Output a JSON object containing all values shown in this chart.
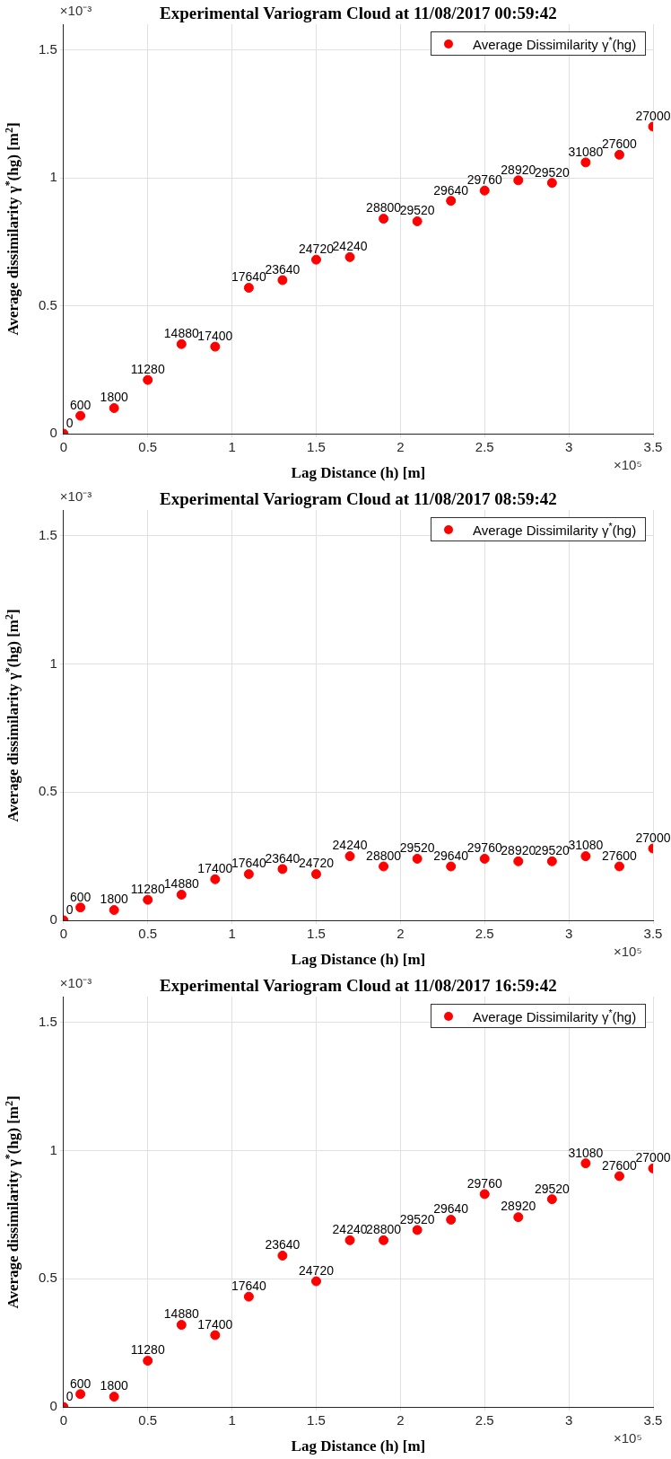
{
  "chart_data": [
    {
      "type": "scatter",
      "title": "Experimental Variogram Cloud at 11/08/2017 00:59:42",
      "xlabel": "Lag Distance (h) [m]",
      "ylabel": "Average dissimilarity γ$^{*}$(hg) [m$^{2}$]",
      "x": [
        0,
        0.1,
        0.3,
        0.5,
        0.7,
        0.9,
        1.1,
        1.3,
        1.5,
        1.7,
        1.9,
        2.1,
        2.3,
        2.5,
        2.7,
        2.9,
        3.1,
        3.3,
        3.5
      ],
      "series": [
        {
          "name": "Average Dissimilarity γ$^{*}$(hg)",
          "color": "#ff0000",
          "values": [
            0,
            0.07,
            0.1,
            0.21,
            0.35,
            0.34,
            0.57,
            0.6,
            0.68,
            0.69,
            0.84,
            0.83,
            0.91,
            0.95,
            0.99,
            0.98,
            1.06,
            1.09,
            1.2
          ]
        }
      ],
      "xlim": [
        0,
        3.5
      ],
      "xticks": [
        0,
        0.5,
        1,
        1.5,
        2,
        2.5,
        3,
        3.5
      ],
      "ylim": [
        0,
        1.6
      ],
      "yticks": [
        0,
        0.5,
        1,
        1.5
      ],
      "grid": true,
      "legend": "top right",
      "marker": "circle",
      "annotations": [
        "×10⁻³",
        "×10⁵",
        {
          "text": "0",
          "x": 0,
          "y": 0
        },
        {
          "text": "600",
          "x": 0.1,
          "y": 0.07
        },
        {
          "text": "1800",
          "x": 0.3,
          "y": 0.1
        },
        {
          "text": "11280",
          "x": 0.5,
          "y": 0.21
        },
        {
          "text": "14880",
          "x": 0.7,
          "y": 0.35
        },
        {
          "text": "17400",
          "x": 0.9,
          "y": 0.34
        },
        {
          "text": "17640",
          "x": 1.1,
          "y": 0.57
        },
        {
          "text": "23640",
          "x": 1.3,
          "y": 0.6
        },
        {
          "text": "24720",
          "x": 1.5,
          "y": 0.68
        },
        {
          "text": "24240",
          "x": 1.7,
          "y": 0.69
        },
        {
          "text": "28800",
          "x": 1.9,
          "y": 0.84
        },
        {
          "text": "29520",
          "x": 2.1,
          "y": 0.83
        },
        {
          "text": "29640",
          "x": 2.3,
          "y": 0.91
        },
        {
          "text": "29760",
          "x": 2.5,
          "y": 0.95
        },
        {
          "text": "28920",
          "x": 2.7,
          "y": 0.99
        },
        {
          "text": "29520",
          "x": 2.9,
          "y": 0.98
        },
        {
          "text": "31080",
          "x": 3.1,
          "y": 1.06
        },
        {
          "text": "27600",
          "x": 3.3,
          "y": 1.09
        },
        {
          "text": "27000",
          "x": 3.5,
          "y": 1.2
        }
      ]
    },
    {
      "type": "scatter",
      "title": "Experimental Variogram Cloud at 11/08/2017 08:59:42",
      "xlabel": "Lag Distance (h) [m]",
      "ylabel": "Average dissimilarity γ$^{*}$(hg) [m$^{2}$]",
      "x": [
        0,
        0.1,
        0.3,
        0.5,
        0.7,
        0.9,
        1.1,
        1.3,
        1.5,
        1.7,
        1.9,
        2.1,
        2.3,
        2.5,
        2.7,
        2.9,
        3.1,
        3.3,
        3.5
      ],
      "series": [
        {
          "name": "Average Dissimilarity γ$^{*}$(hg)",
          "color": "#ff0000",
          "values": [
            0,
            0.05,
            0.04,
            0.08,
            0.1,
            0.16,
            0.18,
            0.2,
            0.18,
            0.25,
            0.21,
            0.24,
            0.21,
            0.24,
            0.23,
            0.23,
            0.25,
            0.21,
            0.28
          ]
        }
      ],
      "xlim": [
        0,
        3.5
      ],
      "xticks": [
        0,
        0.5,
        1,
        1.5,
        2,
        2.5,
        3,
        3.5
      ],
      "ylim": [
        0,
        1.6
      ],
      "yticks": [
        0,
        0.5,
        1,
        1.5
      ],
      "grid": true,
      "legend": "top right",
      "marker": "circle",
      "annotations": [
        "×10⁻³",
        "×10⁵",
        {
          "text": "0",
          "x": 0,
          "y": 0
        },
        {
          "text": "600",
          "x": 0.1,
          "y": 0.05
        },
        {
          "text": "1800",
          "x": 0.3,
          "y": 0.04
        },
        {
          "text": "11280",
          "x": 0.5,
          "y": 0.08
        },
        {
          "text": "14880",
          "x": 0.7,
          "y": 0.1
        },
        {
          "text": "17400",
          "x": 0.9,
          "y": 0.16
        },
        {
          "text": "17640",
          "x": 1.1,
          "y": 0.18
        },
        {
          "text": "23640",
          "x": 1.3,
          "y": 0.2
        },
        {
          "text": "24720",
          "x": 1.5,
          "y": 0.18
        },
        {
          "text": "24240",
          "x": 1.7,
          "y": 0.25
        },
        {
          "text": "28800",
          "x": 1.9,
          "y": 0.21
        },
        {
          "text": "29520",
          "x": 2.1,
          "y": 0.24
        },
        {
          "text": "29640",
          "x": 2.3,
          "y": 0.21
        },
        {
          "text": "29760",
          "x": 2.5,
          "y": 0.24
        },
        {
          "text": "28920",
          "x": 2.7,
          "y": 0.23
        },
        {
          "text": "29520",
          "x": 2.9,
          "y": 0.23
        },
        {
          "text": "31080",
          "x": 3.1,
          "y": 0.25
        },
        {
          "text": "27600",
          "x": 3.3,
          "y": 0.21
        },
        {
          "text": "27000",
          "x": 3.5,
          "y": 0.28
        }
      ]
    },
    {
      "type": "scatter",
      "title": "Experimental Variogram Cloud at 11/08/2017 16:59:42",
      "xlabel": "Lag Distance (h) [m]",
      "ylabel": "Average dissimilarity γ$^{*}$(hg) [m$^{2}$]",
      "x": [
        0,
        0.1,
        0.3,
        0.5,
        0.7,
        0.9,
        1.1,
        1.3,
        1.5,
        1.7,
        1.9,
        2.1,
        2.3,
        2.5,
        2.7,
        2.9,
        3.1,
        3.3,
        3.5
      ],
      "series": [
        {
          "name": "Average Dissimilarity γ$^{*}$(hg)",
          "color": "#ff0000",
          "values": [
            0,
            0.05,
            0.04,
            0.18,
            0.32,
            0.28,
            0.43,
            0.59,
            0.49,
            0.65,
            0.65,
            0.69,
            0.73,
            0.83,
            0.74,
            0.81,
            0.95,
            0.9,
            0.93
          ]
        }
      ],
      "xlim": [
        0,
        3.5
      ],
      "xticks": [
        0,
        0.5,
        1,
        1.5,
        2,
        2.5,
        3,
        3.5
      ],
      "ylim": [
        0,
        1.6
      ],
      "yticks": [
        0,
        0.5,
        1,
        1.5
      ],
      "grid": true,
      "legend": "top right",
      "marker": "circle",
      "annotations": [
        "×10⁻³",
        "×10⁵",
        {
          "text": "0",
          "x": 0,
          "y": 0
        },
        {
          "text": "600",
          "x": 0.1,
          "y": 0.05
        },
        {
          "text": "1800",
          "x": 0.3,
          "y": 0.04
        },
        {
          "text": "11280",
          "x": 0.5,
          "y": 0.18
        },
        {
          "text": "14880",
          "x": 0.7,
          "y": 0.32
        },
        {
          "text": "17400",
          "x": 0.9,
          "y": 0.28
        },
        {
          "text": "17640",
          "x": 1.1,
          "y": 0.43
        },
        {
          "text": "23640",
          "x": 1.3,
          "y": 0.59
        },
        {
          "text": "24720",
          "x": 1.5,
          "y": 0.49
        },
        {
          "text": "24240",
          "x": 1.7,
          "y": 0.65
        },
        {
          "text": "28800",
          "x": 1.9,
          "y": 0.65
        },
        {
          "text": "29520",
          "x": 2.1,
          "y": 0.69
        },
        {
          "text": "29640",
          "x": 2.3,
          "y": 0.73
        },
        {
          "text": "29760",
          "x": 2.5,
          "y": 0.83
        },
        {
          "text": "28920",
          "x": 2.7,
          "y": 0.74
        },
        {
          "text": "29520",
          "x": 2.9,
          "y": 0.81
        },
        {
          "text": "31080",
          "x": 3.1,
          "y": 0.95
        },
        {
          "text": "27600",
          "x": 3.3,
          "y": 0.9
        },
        {
          "text": "27000",
          "x": 3.5,
          "y": 0.93
        }
      ]
    }
  ]
}
